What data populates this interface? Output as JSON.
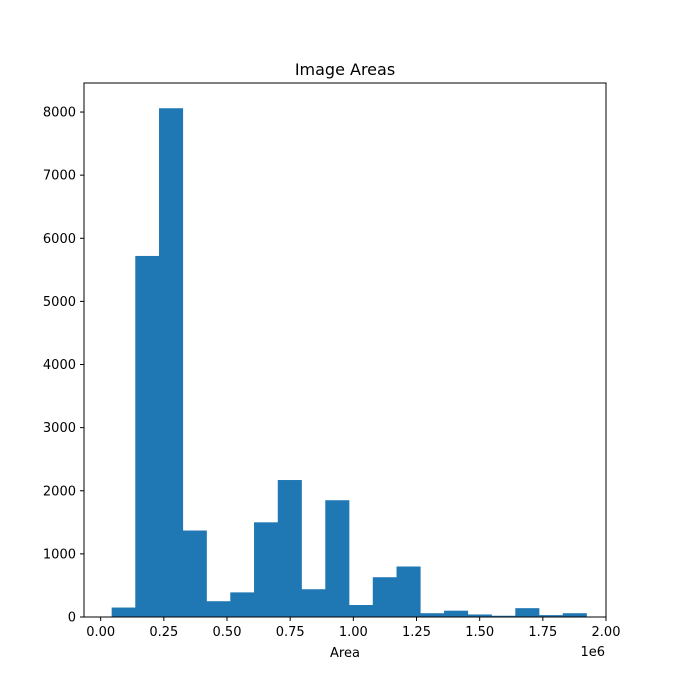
{
  "chart_data": {
    "type": "bar",
    "title": "Image Areas",
    "xlabel": "Area",
    "ylabel": "",
    "x_offset_label": "1e6",
    "color": "#1f77b4",
    "xlim": [
      -0.066,
      2.0
    ],
    "ylim": [
      0,
      8460
    ],
    "x_ticks": [
      0.0,
      0.25,
      0.5,
      0.75,
      1.0,
      1.25,
      1.5,
      1.75,
      2.0
    ],
    "x_tick_labels": [
      "0.00",
      "0.25",
      "0.50",
      "0.75",
      "1.00",
      "1.25",
      "1.50",
      "1.75",
      "2.00"
    ],
    "y_ticks": [
      0,
      1000,
      2000,
      3000,
      4000,
      5000,
      6000,
      7000,
      8000
    ],
    "y_tick_labels": [
      "0",
      "1000",
      "2000",
      "3000",
      "4000",
      "5000",
      "6000",
      "7000",
      "8000"
    ],
    "bin_edges": [
      0.0435,
      0.137,
      0.231,
      0.325,
      0.419,
      0.513,
      0.607,
      0.701,
      0.795,
      0.889,
      0.983,
      1.077,
      1.171,
      1.265,
      1.359,
      1.453,
      1.547,
      1.641,
      1.735,
      1.829,
      1.923
    ],
    "values": [
      150,
      5720,
      8060,
      1370,
      250,
      390,
      1500,
      2170,
      440,
      1850,
      190,
      630,
      800,
      60,
      100,
      40,
      20,
      140,
      30,
      60
    ]
  }
}
